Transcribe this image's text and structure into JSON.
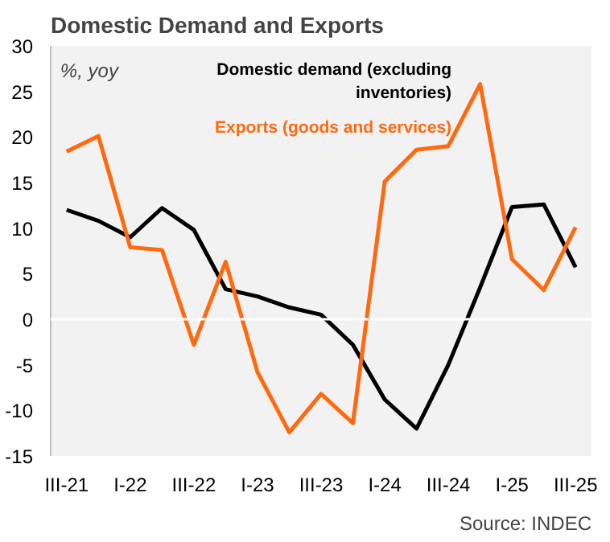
{
  "chart_data": {
    "type": "line",
    "title": "Domestic Demand and Exports",
    "ylabel": "%, yoy",
    "categories": [
      "III-21",
      null,
      "I-22",
      null,
      "III-22",
      null,
      "I-23",
      null,
      "III-23",
      null,
      "I-24",
      null,
      "III-24",
      null,
      "I-25",
      null,
      "III-25"
    ],
    "series": [
      {
        "name": "Domestic demand (excluding inventories)",
        "color": "#000000",
        "values": [
          12.0,
          10.8,
          9.0,
          12.2,
          9.8,
          3.3,
          2.5,
          1.3,
          0.5,
          -2.8,
          -8.8,
          -12.0,
          -5.0,
          3.5,
          12.3,
          12.6,
          5.7
        ]
      },
      {
        "name": "Exports (goods and services)",
        "color": "#ff6a10",
        "values": [
          18.4,
          20.1,
          7.9,
          7.6,
          -2.8,
          6.3,
          -5.8,
          -12.4,
          -8.2,
          -11.4,
          15.1,
          18.6,
          19.0,
          25.8,
          6.6,
          3.2,
          10.1
        ]
      }
    ],
    "ylim": [
      -15,
      30
    ],
    "yticks": [
      -15,
      -10,
      -5,
      0,
      5,
      10,
      15,
      20,
      25,
      30
    ],
    "ref_lines": [
      {
        "axis": "y",
        "value": 0,
        "color": "#ffffff"
      }
    ],
    "grid": false,
    "annotations": [
      "Source: INDEC"
    ]
  }
}
